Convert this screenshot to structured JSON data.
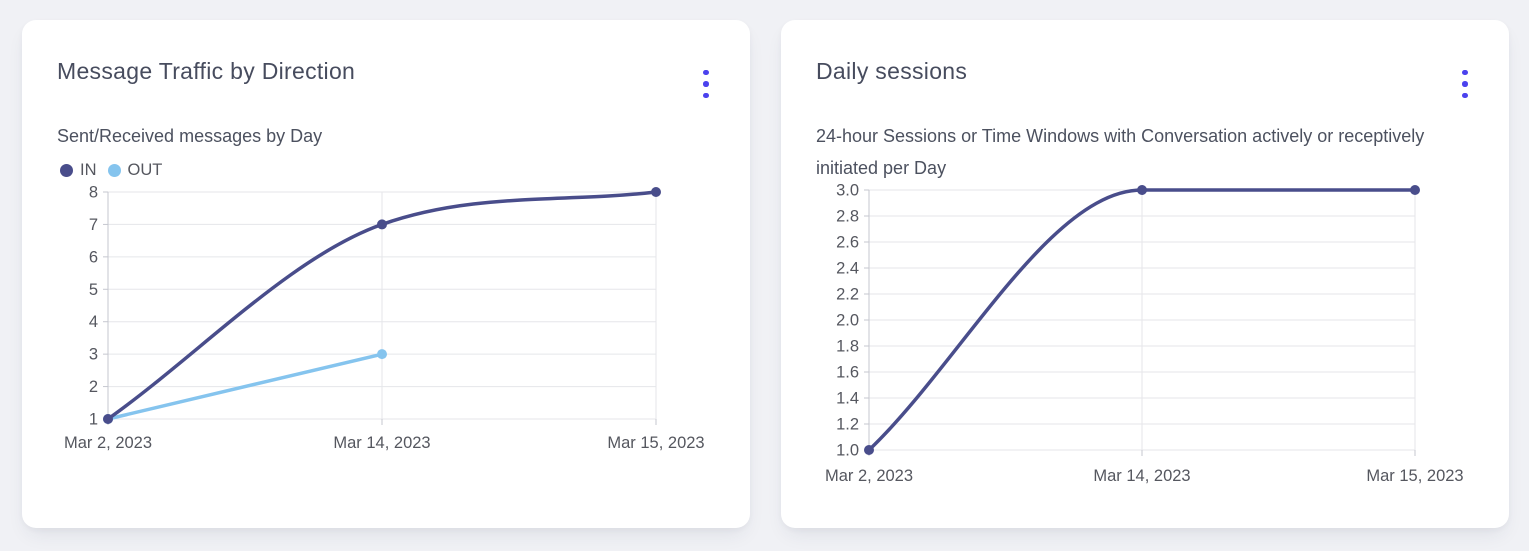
{
  "cards": [
    {
      "title": "Message Traffic by Direction",
      "subtitle": "Sent/Received messages by Day",
      "menu_icon": "kebab-menu-icon"
    },
    {
      "title": "Daily sessions",
      "subtitle": "24-hour Sessions or Time Windows with Conversation actively or receptively initiated per Day",
      "menu_icon": "kebab-menu-icon"
    }
  ],
  "chart_data": [
    {
      "type": "line",
      "title": "Message Traffic by Direction",
      "subtitle": "Sent/Received messages by Day",
      "categories": [
        "Mar 2, 2023",
        "Mar 14, 2023",
        "Mar 15, 2023"
      ],
      "series": [
        {
          "name": "IN",
          "color": "#494d8b",
          "values": [
            1,
            7,
            8
          ]
        },
        {
          "name": "OUT",
          "color": "#85c4ee",
          "values": [
            1,
            3,
            null
          ]
        }
      ],
      "ylim": [
        1,
        8
      ],
      "ytick_step": 1,
      "ytick_decimals": 0,
      "grid": true,
      "legend_position": "top-left",
      "line_style": "smooth-monotone"
    },
    {
      "type": "line",
      "title": "Daily sessions",
      "subtitle": "24-hour Sessions or Time Windows with Conversation actively or receptively initiated per Day",
      "categories": [
        "Mar 2, 2023",
        "Mar 14, 2023",
        "Mar 15, 2023"
      ],
      "series": [
        {
          "name": "Daily sessions",
          "color": "#494d8b",
          "values": [
            1.0,
            3.0,
            3.0
          ]
        }
      ],
      "ylim": [
        1.0,
        3.0
      ],
      "ytick_step": 0.2,
      "ytick_decimals": 1,
      "grid": true,
      "legend_position": "none",
      "line_style": "smooth-monotone"
    }
  ],
  "colors": {
    "page_background": "#f0f1f5",
    "card_background": "#ffffff",
    "accent_menu": "#4b42ee",
    "series_in": "#494d8b",
    "series_out": "#85c4ee",
    "grid_line": "#e5e6ea",
    "axis_line": "#c5c7cf",
    "tick_text": "#55575f",
    "title_text": "#474c5e",
    "subtitle_text": "#4c515f"
  }
}
